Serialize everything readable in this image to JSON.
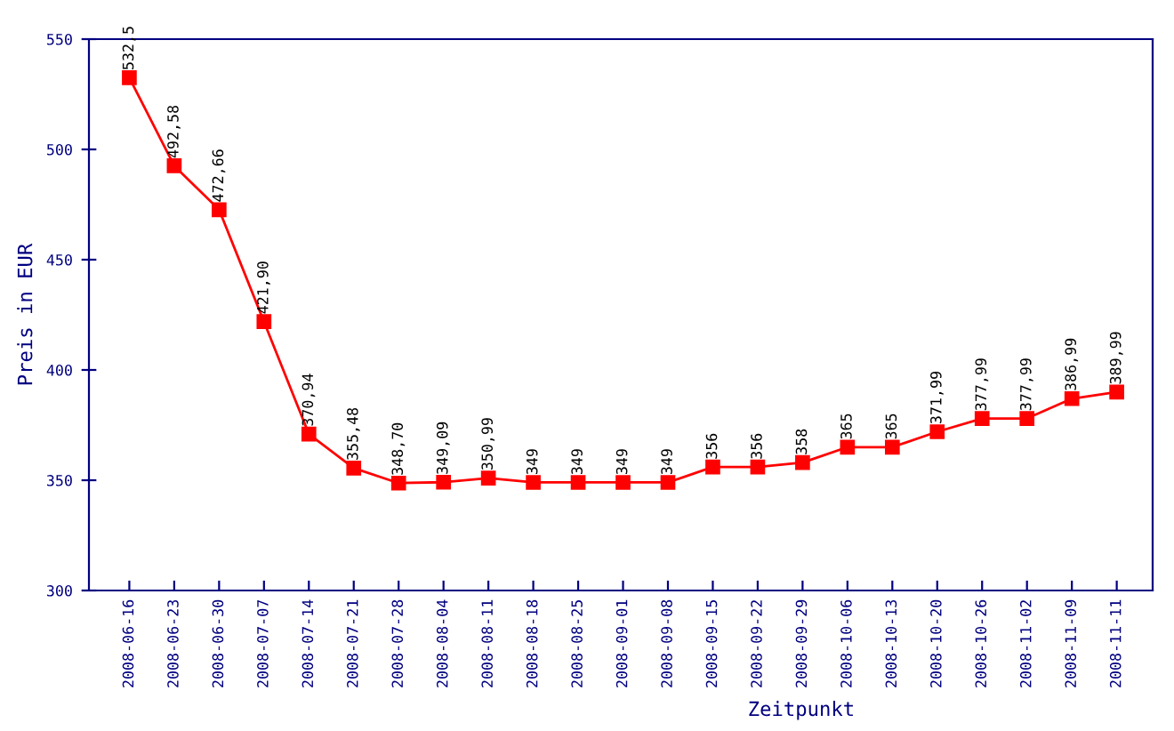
{
  "chart_data": {
    "type": "line",
    "xlabel": "Zeitpunkt",
    "ylabel": "Preis in EUR",
    "categories": [
      "2008-06-16",
      "2008-06-23",
      "2008-06-30",
      "2008-07-07",
      "2008-07-14",
      "2008-07-21",
      "2008-07-28",
      "2008-08-04",
      "2008-08-11",
      "2008-08-18",
      "2008-08-25",
      "2008-09-01",
      "2008-09-08",
      "2008-09-15",
      "2008-09-22",
      "2008-09-29",
      "2008-10-06",
      "2008-10-13",
      "2008-10-20",
      "2008-10-26",
      "2008-11-02",
      "2008-11-09",
      "2008-11-11"
    ],
    "series": [
      {
        "color": "#ff0000",
        "values": [
          532.5,
          492.58,
          472.66,
          421.9,
          370.94,
          355.48,
          348.7,
          349.09,
          350.99,
          349,
          349,
          349,
          349,
          356,
          356,
          358,
          365,
          365,
          371.99,
          377.99,
          377.99,
          386.99,
          389.99
        ],
        "value_labels": [
          "532,5",
          "492,58",
          "472,66",
          "421,90",
          "370,94",
          "355,48",
          "348,70",
          "349,09",
          "350,99",
          "349",
          "349",
          "349",
          "349",
          "356",
          "356",
          "358",
          "365",
          "365",
          "371,99",
          "377,99",
          "377,99",
          "386,99",
          "389,99"
        ]
      }
    ],
    "ylim": [
      300,
      550
    ],
    "yticks": [
      300,
      350,
      400,
      450,
      500,
      550
    ],
    "marker": "square",
    "grid": false,
    "legend": false
  }
}
